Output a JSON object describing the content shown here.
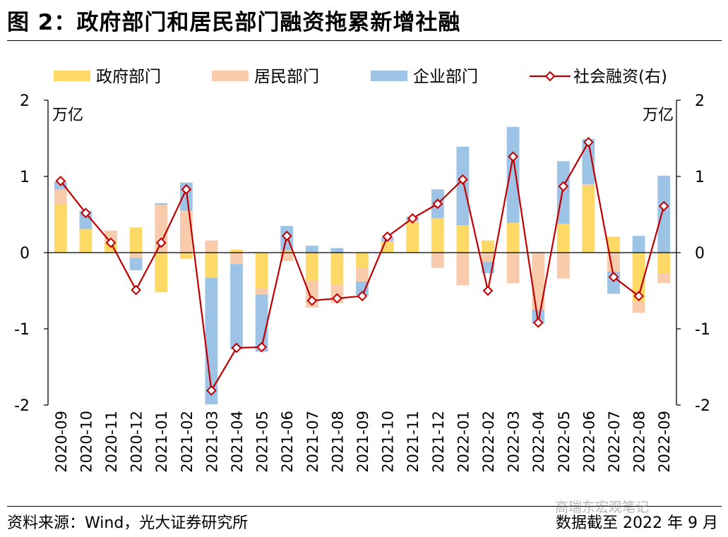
{
  "title": "图 2：政府部门和居民部门融资拖累新增社融",
  "source": "资料来源：Wind，光大证券研究所",
  "cutoff": "数据截至 2022 年 9 月",
  "watermark": "高瑞东宏观笔记",
  "colors": {
    "government": "#FFD966",
    "household": "#F8CBAD",
    "enterprise": "#9DC3E6",
    "social_financing": "#C00000"
  },
  "chart_data": {
    "type": "bar",
    "stacked": true,
    "unit_left": "万亿",
    "unit_right": "万亿",
    "ylim_left": [
      -2,
      2
    ],
    "ylim_right": [
      -2,
      2
    ],
    "yticks_left": [
      "2",
      "1",
      "0",
      "-1",
      "-2"
    ],
    "yticks_right": [
      "2",
      "1",
      "0",
      "-1",
      "-2"
    ],
    "legend_position": "top",
    "categories": [
      "2020-09",
      "2020-10",
      "2020-11",
      "2020-12",
      "2021-01",
      "2021-02",
      "2021-03",
      "2021-04",
      "2021-05",
      "2021-06",
      "2021-07",
      "2021-08",
      "2021-09",
      "2021-10",
      "2021-11",
      "2021-12",
      "2022-01",
      "2022-02",
      "2022-03",
      "2022-04",
      "2022-05",
      "2022-06",
      "2022-07",
      "2022-08",
      "2022-09"
    ],
    "series": [
      {
        "name": "政府部门",
        "kind": "bar",
        "values": [
          0.63,
          0.31,
          0.14,
          0.33,
          -0.52,
          -0.08,
          -0.33,
          0.04,
          -0.47,
          0.03,
          -0.37,
          -0.42,
          -0.2,
          0.13,
          0.4,
          0.45,
          0.36,
          0.16,
          0.39,
          0,
          0.38,
          0.87,
          0.21,
          -0.65,
          -0.27
        ]
      },
      {
        "name": "居民部门",
        "kind": "bar",
        "values": [
          0.2,
          0,
          0.15,
          -0.07,
          0.63,
          0.55,
          0.16,
          -0.15,
          -0.08,
          -0.11,
          -0.35,
          -0.24,
          -0.18,
          0.02,
          0.02,
          -0.2,
          -0.43,
          -0.12,
          -0.4,
          -0.75,
          -0.34,
          0.03,
          -0.25,
          -0.14,
          -0.13
        ]
      },
      {
        "name": "企业部门",
        "kind": "bar",
        "values": [
          0.1,
          0.24,
          0,
          -0.16,
          0.02,
          0.37,
          -1.66,
          -1.12,
          -0.75,
          0.32,
          0.09,
          0.06,
          -0.18,
          0.05,
          0.05,
          0.38,
          1.03,
          -0.15,
          1.26,
          -0.18,
          0.82,
          0.59,
          -0.29,
          0.22,
          1.01
        ]
      },
      {
        "name": "社会融资(右)",
        "kind": "line",
        "axis": "right",
        "values": [
          0.94,
          0.52,
          0.13,
          -0.49,
          0.13,
          0.83,
          -1.81,
          -1.25,
          -1.24,
          0.22,
          -0.63,
          -0.6,
          -0.57,
          0.21,
          0.45,
          0.64,
          0.96,
          -0.5,
          1.26,
          -0.92,
          0.87,
          1.45,
          -0.32,
          -0.57,
          0.61
        ]
      }
    ]
  }
}
